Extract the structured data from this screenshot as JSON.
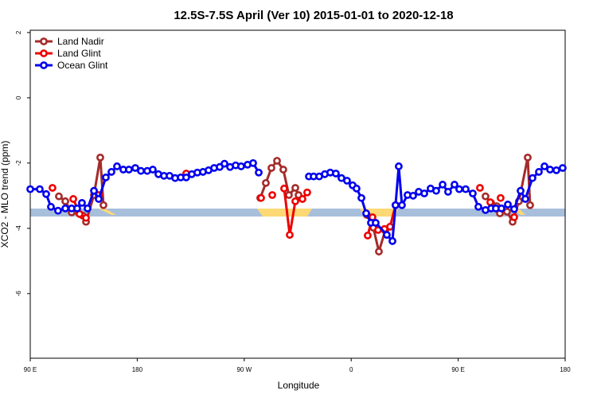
{
  "chart_data": {
    "type": "line",
    "title": "12.5S-7.5S April (Ver 10)   2015-01-01 to 2020-12-18",
    "x_label": "Longitude",
    "y_label": "XCO2 - MLO trend (ppm)",
    "xlim": [
      90,
      540
    ],
    "ylim": [
      -7.98,
      2.07
    ],
    "xticks": [
      {
        "value": 90,
        "label": "90 E"
      },
      180,
      {
        "value": 270,
        "label": "90 W"
      },
      {
        "value": 360,
        "label": "0"
      },
      {
        "value": 450,
        "label": "90 E"
      },
      {
        "value": 540,
        "label": "180"
      }
    ],
    "yticks": [
      -6,
      -4,
      -2,
      0,
      2
    ],
    "legend": "top-left",
    "series": [
      {
        "name": "Land Nadir",
        "color": "#a52a2a",
        "x": [
          114.1,
          119.5,
          124.8,
          134.2,
          136.9,
          143.6,
          148.9,
          151.6,
          200,
          283.5,
          288.2,
          292.9,
          297.6,
          302.9,
          307.6,
          313,
          315.7,
          340,
          373.2,
          378.6,
          383.3,
          388.6,
          450,
          473,
          477.7,
          482.4,
          485.1,
          491.1,
          495.8,
          501.1,
          508.5,
          510.5
        ],
        "values": [
          -3.02,
          -3.17,
          -3.51,
          -3.61,
          -3.8,
          -2.98,
          -1.83,
          -3.29,
          null,
          -3.07,
          -2.61,
          -2.15,
          -1.93,
          -2.2,
          -2.98,
          -2.76,
          -2.98,
          null,
          -3.59,
          -3.98,
          -4.71,
          -4.07,
          null,
          -3.02,
          -3.22,
          -3.32,
          -3.54,
          -3.49,
          -3.8,
          -3.17,
          -1.83,
          -3.29
        ]
      },
      {
        "name": "Land Glint",
        "color": "#ee0000",
        "x": [
          108.7,
          117,
          126.2,
          131.5,
          136.9,
          142,
          147.6,
          200,
          221.2,
          260,
          284.2,
          290,
          293.6,
          300,
          303.6,
          308.3,
          313,
          319,
          323,
          350,
          373.9,
          377.9,
          382.6,
          388,
          392.7,
          397.3,
          430,
          468.3,
          472,
          477,
          481,
          485.7,
          490,
          497.1
        ],
        "values": [
          -2.76,
          null,
          -3.1,
          -3.56,
          -3.68,
          null,
          -2.98,
          null,
          -2.32,
          null,
          -3.07,
          null,
          -2.98,
          null,
          -2.78,
          -4.2,
          -3.17,
          -3.1,
          -2.9,
          null,
          -4.22,
          -3.66,
          -4.05,
          -4.02,
          -3.95,
          -3.29,
          null,
          -2.76,
          null,
          -3.2,
          null,
          -3.07,
          null,
          -3.66
        ]
      },
      {
        "name": "Ocean Glint",
        "color": "#0000ee",
        "x": [
          90,
          98,
          103.4,
          107.4,
          113.4,
          119.5,
          124.8,
          129.5,
          133.5,
          138.2,
          143.6,
          147.6,
          153.6,
          158.3,
          163,
          168.3,
          173,
          178.4,
          183.1,
          188.4,
          193.1,
          197.8,
          202.5,
          207.2,
          211.9,
          216.6,
          221.2,
          225.9,
          230.6,
          235.3,
          240,
          244.7,
          249.4,
          253.4,
          258.1,
          262.8,
          267.4,
          272.8,
          277.5,
          282.2,
          303,
          324.4,
          328.4,
          333.1,
          337.8,
          342.4,
          347.1,
          351.8,
          356.5,
          361.2,
          364.5,
          368.6,
          372.6,
          376.6,
          380.6,
          390,
          394.7,
          397.3,
          400,
          402.7,
          407.4,
          412.1,
          416.8,
          421.5,
          426.8,
          431.5,
          436.9,
          441.5,
          446.9,
          450.9,
          456.3,
          462.3,
          467,
          473,
          477.7,
          481.7,
          486.4,
          491.8,
          497.1,
          502.5,
          506.5,
          512.5,
          517.9,
          522.6,
          527.3,
          532.6,
          537.9
        ],
        "values": [
          -2.8,
          -2.8,
          -2.95,
          -3.34,
          -3.46,
          -3.39,
          -3.39,
          -3.39,
          -3.22,
          -3.39,
          -2.85,
          -3.1,
          -2.44,
          -2.27,
          -2.1,
          -2.2,
          -2.2,
          -2.15,
          -2.24,
          -2.24,
          -2.2,
          -2.34,
          -2.39,
          -2.39,
          -2.46,
          -2.44,
          -2.44,
          -2.34,
          -2.29,
          -2.27,
          -2.22,
          -2.15,
          -2.12,
          -2.02,
          -2.12,
          -2.07,
          -2.1,
          -2.05,
          -2,
          -2.29,
          null,
          -2.41,
          -2.41,
          -2.41,
          -2.34,
          -2.29,
          -2.32,
          -2.46,
          -2.54,
          -2.68,
          -2.78,
          -3.07,
          -3.54,
          -3.83,
          -3.83,
          -4.2,
          -4.39,
          -3.29,
          -2.1,
          -3.29,
          -2.98,
          -3,
          -2.88,
          -2.93,
          -2.78,
          -2.85,
          -2.66,
          -2.88,
          -2.66,
          -2.8,
          -2.8,
          -2.93,
          -3.34,
          -3.44,
          -3.39,
          -3.39,
          -3.39,
          -3.27,
          -3.41,
          -2.85,
          -3.1,
          -2.46,
          -2.27,
          -2.1,
          -2.2,
          -2.22,
          -2.15
        ]
      }
    ]
  }
}
